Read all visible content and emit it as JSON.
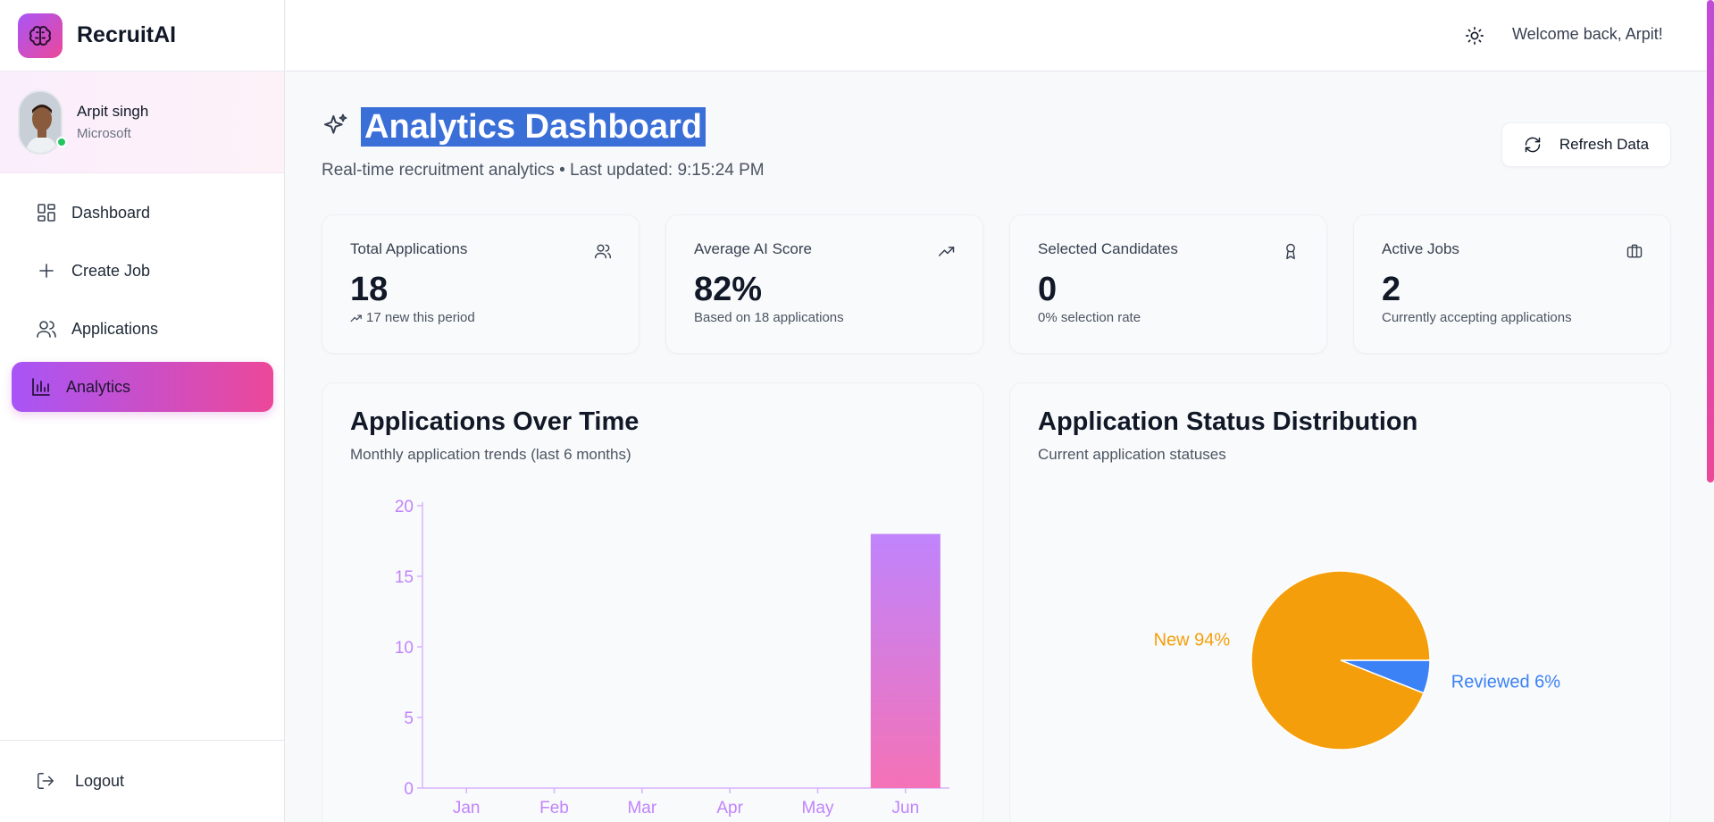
{
  "brand": {
    "name": "RecruitAI",
    "logo_icon": "brain-icon",
    "accent": "#a855f7",
    "accent2": "#ec4899"
  },
  "profile": {
    "name": "Arpit singh",
    "company": "Microsoft",
    "status": "online"
  },
  "nav": {
    "items": [
      {
        "label": "Dashboard",
        "icon": "dashboard-icon"
      },
      {
        "label": "Create Job",
        "icon": "plus-icon"
      },
      {
        "label": "Applications",
        "icon": "users-icon"
      },
      {
        "label": "Analytics",
        "icon": "bar-chart-icon",
        "active": true
      }
    ],
    "logout_label": "Logout"
  },
  "header": {
    "welcome": "Welcome back, Arpit!",
    "theme_icon": "sun-icon"
  },
  "page": {
    "title": "Analytics Dashboard",
    "subtitle": "Real-time recruitment analytics • Last updated: 9:15:24 PM",
    "refresh_label": "Refresh Data"
  },
  "stats": [
    {
      "label": "Total Applications",
      "value": "18",
      "note": "17 new this period",
      "icon": "users-icon"
    },
    {
      "label": "Average AI Score",
      "value": "82%",
      "note": "Based on 18 applications",
      "icon": "trending-up-icon"
    },
    {
      "label": "Selected Candidates",
      "value": "0",
      "note": "0% selection rate",
      "icon": "award-icon"
    },
    {
      "label": "Active Jobs",
      "value": "2",
      "note": "Currently accepting applications",
      "icon": "briefcase-icon"
    }
  ],
  "charts": {
    "bar_title": "Applications Over Time",
    "bar_subtitle": "Monthly application trends (last 6 months)",
    "pie_title": "Application Status Distribution",
    "pie_subtitle": "Current application statuses"
  },
  "chart_data": [
    {
      "type": "bar",
      "title": "Applications Over Time",
      "categories": [
        "Jan",
        "Feb",
        "Mar",
        "Apr",
        "May",
        "Jun"
      ],
      "values": [
        0,
        0,
        0,
        0,
        0,
        18
      ],
      "yticks": [
        0,
        5,
        10,
        15,
        20
      ],
      "ylim": [
        0,
        20
      ],
      "grid": false,
      "axis_color": "#d8b4fe",
      "tick_color": "#c084fc",
      "bar_gradient": [
        "#c084fc",
        "#f472b6"
      ]
    },
    {
      "type": "pie",
      "title": "Application Status Distribution",
      "slices": [
        {
          "label": "New 94%",
          "value": 94,
          "color": "#f59e0b"
        },
        {
          "label": "Reviewed 6%",
          "value": 6,
          "color": "#3b82f6"
        }
      ]
    }
  ]
}
